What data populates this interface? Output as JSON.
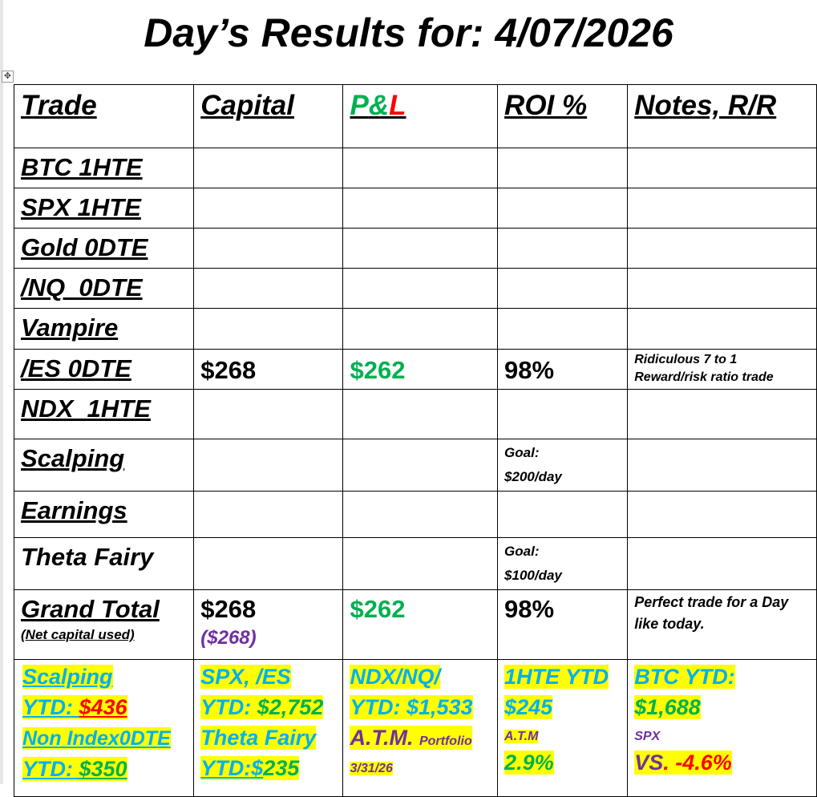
{
  "title": "Day’s Results for: 4/07/2026",
  "headers": {
    "trade": "Trade",
    "capital": "Capital",
    "pnl_p": "P",
    "pnl_amp": "&",
    "pnl_l": "L",
    "roi": "ROI %",
    "notes": "Notes, R/R"
  },
  "rows": [
    {
      "trade": "BTC 1HTE",
      "capital": "",
      "pnl": "",
      "roi": "",
      "notes": ""
    },
    {
      "trade": "SPX 1HTE",
      "capital": "",
      "pnl": "",
      "roi": "",
      "notes": ""
    },
    {
      "trade": "Gold 0DTE",
      "capital": "",
      "pnl": "",
      "roi": "",
      "notes": ""
    },
    {
      "trade": "/NQ  0DTE",
      "capital": "",
      "pnl": "",
      "roi": "",
      "notes": ""
    },
    {
      "trade": "Vampire",
      "capital": "",
      "pnl": "",
      "roi": "",
      "notes": ""
    },
    {
      "trade": "/ES 0DTE",
      "capital": "$268",
      "pnl": "$262",
      "roi": "98%",
      "notes": "Ridiculous 7 to 1 Reward/risk ratio trade"
    },
    {
      "trade": "NDX  1HTE",
      "capital": "",
      "pnl": "",
      "roi": "",
      "notes": ""
    },
    {
      "trade": "Scalping",
      "capital": "",
      "pnl": "",
      "roi_goal": "Goal:",
      "roi_goal_value": "$200/day",
      "notes": ""
    },
    {
      "trade": "Earnings",
      "capital": "",
      "pnl": "",
      "roi": "",
      "notes": ""
    },
    {
      "trade": "Theta Fairy",
      "capital": "",
      "pnl": "",
      "roi_goal": "Goal:",
      "roi_goal_value": "$100/day",
      "notes": ""
    }
  ],
  "grand_total": {
    "label": "Grand Total",
    "sublabel": "(Net capital used)",
    "capital": "$268",
    "net_capital": "($268)",
    "pnl": "$262",
    "roi": "98%",
    "notes": "Perfect trade for a Day like today."
  },
  "ytd": {
    "scalping_label": "Scalping",
    "scalping_ytd_label": "YTD: ",
    "scalping_ytd": "$436",
    "nonindex_label": "Non Index0DTE",
    "nonindex_ytd_label": "YTD: ",
    "nonindex_ytd": "$350",
    "spx_label": "SPX, /ES",
    "spx_ytd_label": "YTD: ",
    "spx_ytd": "$2,752",
    "theta_label": "Theta Fairy",
    "theta_ytd_label": "YTD:$",
    "theta_ytd": "235",
    "ndx_label": "NDX/NQ/",
    "ndx_ytd": "YTD: $1,533",
    "atm_label": "A.T.M.",
    "portfolio_label": "Portfolio",
    "atm_date": "3/31/26",
    "hte_label": "1HTE YTD",
    "hte_ytd": "$245",
    "hte_atm": "A.T.M",
    "hte_pct": "2.9%",
    "btc_label": "BTC YTD:",
    "btc_ytd": "$1,688",
    "spx_small": "SPX",
    "vs_label": "VS",
    "vs_dot": ".",
    "vs_value": " -4.6%"
  },
  "colors": {
    "highlight": "#ffff00",
    "cyan": "#00b0f0",
    "green": "#00b050",
    "red": "#ff0000",
    "purple": "#7030a0"
  }
}
